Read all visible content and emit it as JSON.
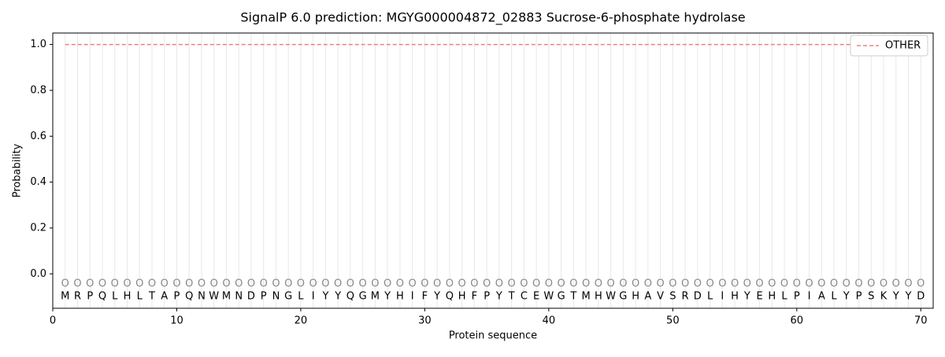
{
  "chart_data": {
    "type": "line",
    "title": "SignalP 6.0 prediction: MGYG000004872_02883 Sucrose-6-phosphate hydrolase",
    "xlabel": "Protein sequence",
    "ylabel": "Probability",
    "x": [
      1,
      2,
      3,
      4,
      5,
      6,
      7,
      8,
      9,
      10,
      11,
      12,
      13,
      14,
      15,
      16,
      17,
      18,
      19,
      20,
      21,
      22,
      23,
      24,
      25,
      26,
      27,
      28,
      29,
      30,
      31,
      32,
      33,
      34,
      35,
      36,
      37,
      38,
      39,
      40,
      41,
      42,
      43,
      44,
      45,
      46,
      47,
      48,
      49,
      50,
      51,
      52,
      53,
      54,
      55,
      56,
      57,
      58,
      59,
      60,
      61,
      62,
      63,
      64,
      65,
      66,
      67,
      68,
      69,
      70
    ],
    "sequence": [
      "M",
      "R",
      "P",
      "Q",
      "L",
      "H",
      "L",
      "T",
      "A",
      "P",
      "Q",
      "N",
      "W",
      "M",
      "N",
      "D",
      "P",
      "N",
      "G",
      "L",
      "I",
      "Y",
      "Y",
      "Q",
      "G",
      "M",
      "Y",
      "H",
      "I",
      "F",
      "Y",
      "Q",
      "H",
      "F",
      "P",
      "Y",
      "T",
      "C",
      "E",
      "W",
      "G",
      "T",
      "M",
      "H",
      "W",
      "G",
      "H",
      "A",
      "V",
      "S",
      "R",
      "D",
      "L",
      "I",
      "H",
      "Y",
      "E",
      "H",
      "L",
      "P",
      "I",
      "A",
      "L",
      "Y",
      "P",
      "S",
      "K",
      "Y",
      "Y",
      "D"
    ],
    "labels": [
      "O",
      "O",
      "O",
      "O",
      "O",
      "O",
      "O",
      "O",
      "O",
      "O",
      "O",
      "O",
      "O",
      "O",
      "O",
      "O",
      "O",
      "O",
      "O",
      "O",
      "O",
      "O",
      "O",
      "O",
      "O",
      "O",
      "O",
      "O",
      "O",
      "O",
      "O",
      "O",
      "O",
      "O",
      "O",
      "O",
      "O",
      "O",
      "O",
      "O",
      "O",
      "O",
      "O",
      "O",
      "O",
      "O",
      "O",
      "O",
      "O",
      "O",
      "O",
      "O",
      "O",
      "O",
      "O",
      "O",
      "O",
      "O",
      "O",
      "O",
      "O",
      "O",
      "O",
      "O",
      "O",
      "O",
      "O",
      "O",
      "O",
      "O"
    ],
    "series": [
      {
        "name": "OTHER",
        "color": "#f07f7f",
        "dashed": true,
        "values": [
          1,
          1,
          1,
          1,
          1,
          1,
          1,
          1,
          1,
          1,
          1,
          1,
          1,
          1,
          1,
          1,
          1,
          1,
          1,
          1,
          1,
          1,
          1,
          1,
          1,
          1,
          1,
          1,
          1,
          1,
          1,
          1,
          1,
          1,
          1,
          1,
          1,
          1,
          1,
          1,
          1,
          1,
          1,
          1,
          1,
          1,
          1,
          1,
          1,
          1,
          1,
          1,
          1,
          1,
          1,
          1,
          1,
          1,
          1,
          1,
          1,
          1,
          1,
          1,
          1,
          1,
          1,
          1,
          1,
          1
        ]
      }
    ],
    "xlim": [
      0,
      71
    ],
    "ylim": [
      -0.15,
      1.05
    ],
    "xticks": [
      0,
      10,
      20,
      30,
      40,
      50,
      60,
      70
    ],
    "yticks": [
      {
        "value": 0,
        "label": "0.0"
      },
      {
        "value": 0.2,
        "label": "0.2"
      },
      {
        "value": 0.4,
        "label": "0.4"
      },
      {
        "value": 0.6,
        "label": "0.6"
      },
      {
        "value": 0.8,
        "label": "0.8"
      },
      {
        "value": 1,
        "label": "1.0"
      }
    ],
    "grid": true,
    "legend": "upper right"
  }
}
